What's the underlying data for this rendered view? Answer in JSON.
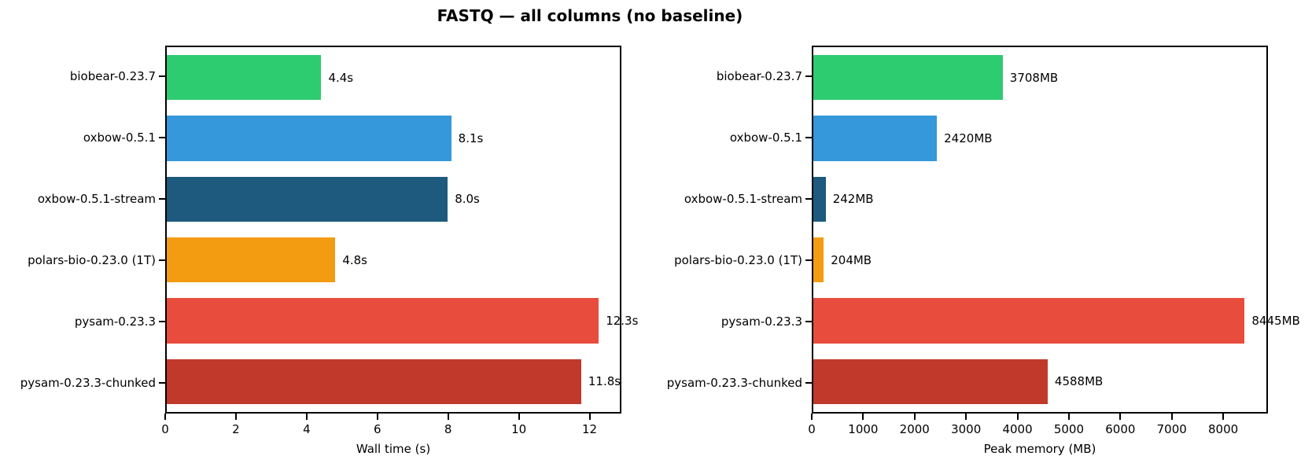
{
  "title": "FASTQ — all columns (no baseline)",
  "chart_data": [
    {
      "type": "bar",
      "orientation": "horizontal",
      "xlabel": "Wall time (s)",
      "ylabel": "",
      "categories": [
        "biobear-0.23.7",
        "oxbow-0.5.1",
        "oxbow-0.5.1-stream",
        "polars-bio-0.23.0 (1T)",
        "pysam-0.23.3",
        "pysam-0.23.3-chunked"
      ],
      "values": [
        4.4,
        8.1,
        8.0,
        4.8,
        12.3,
        11.8
      ],
      "bar_labels": [
        "4.4s",
        "8.1s",
        "8.0s",
        "4.8s",
        "12.3s",
        "11.8s"
      ],
      "colors": [
        "#2ecc71",
        "#3498db",
        "#1d5a7d",
        "#f39c12",
        "#e74c3c",
        "#c0392b"
      ],
      "xlim": [
        0,
        12.9
      ],
      "xticks": [
        0,
        2,
        4,
        6,
        8,
        10,
        12
      ],
      "grid": false,
      "legend": null
    },
    {
      "type": "bar",
      "orientation": "horizontal",
      "xlabel": "Peak memory (MB)",
      "ylabel": "",
      "categories": [
        "biobear-0.23.7",
        "oxbow-0.5.1",
        "oxbow-0.5.1-stream",
        "polars-bio-0.23.0 (1T)",
        "pysam-0.23.3",
        "pysam-0.23.3-chunked"
      ],
      "values": [
        3708,
        2420,
        242,
        204,
        8445,
        4588
      ],
      "bar_labels": [
        "3708MB",
        "2420MB",
        "242MB",
        "204MB",
        "8445MB",
        "4588MB"
      ],
      "colors": [
        "#2ecc71",
        "#3498db",
        "#1d5a7d",
        "#f39c12",
        "#e74c3c",
        "#c0392b"
      ],
      "xlim": [
        0,
        8870
      ],
      "xticks": [
        0,
        1000,
        2000,
        3000,
        4000,
        5000,
        6000,
        7000,
        8000
      ],
      "grid": false,
      "legend": null
    }
  ]
}
